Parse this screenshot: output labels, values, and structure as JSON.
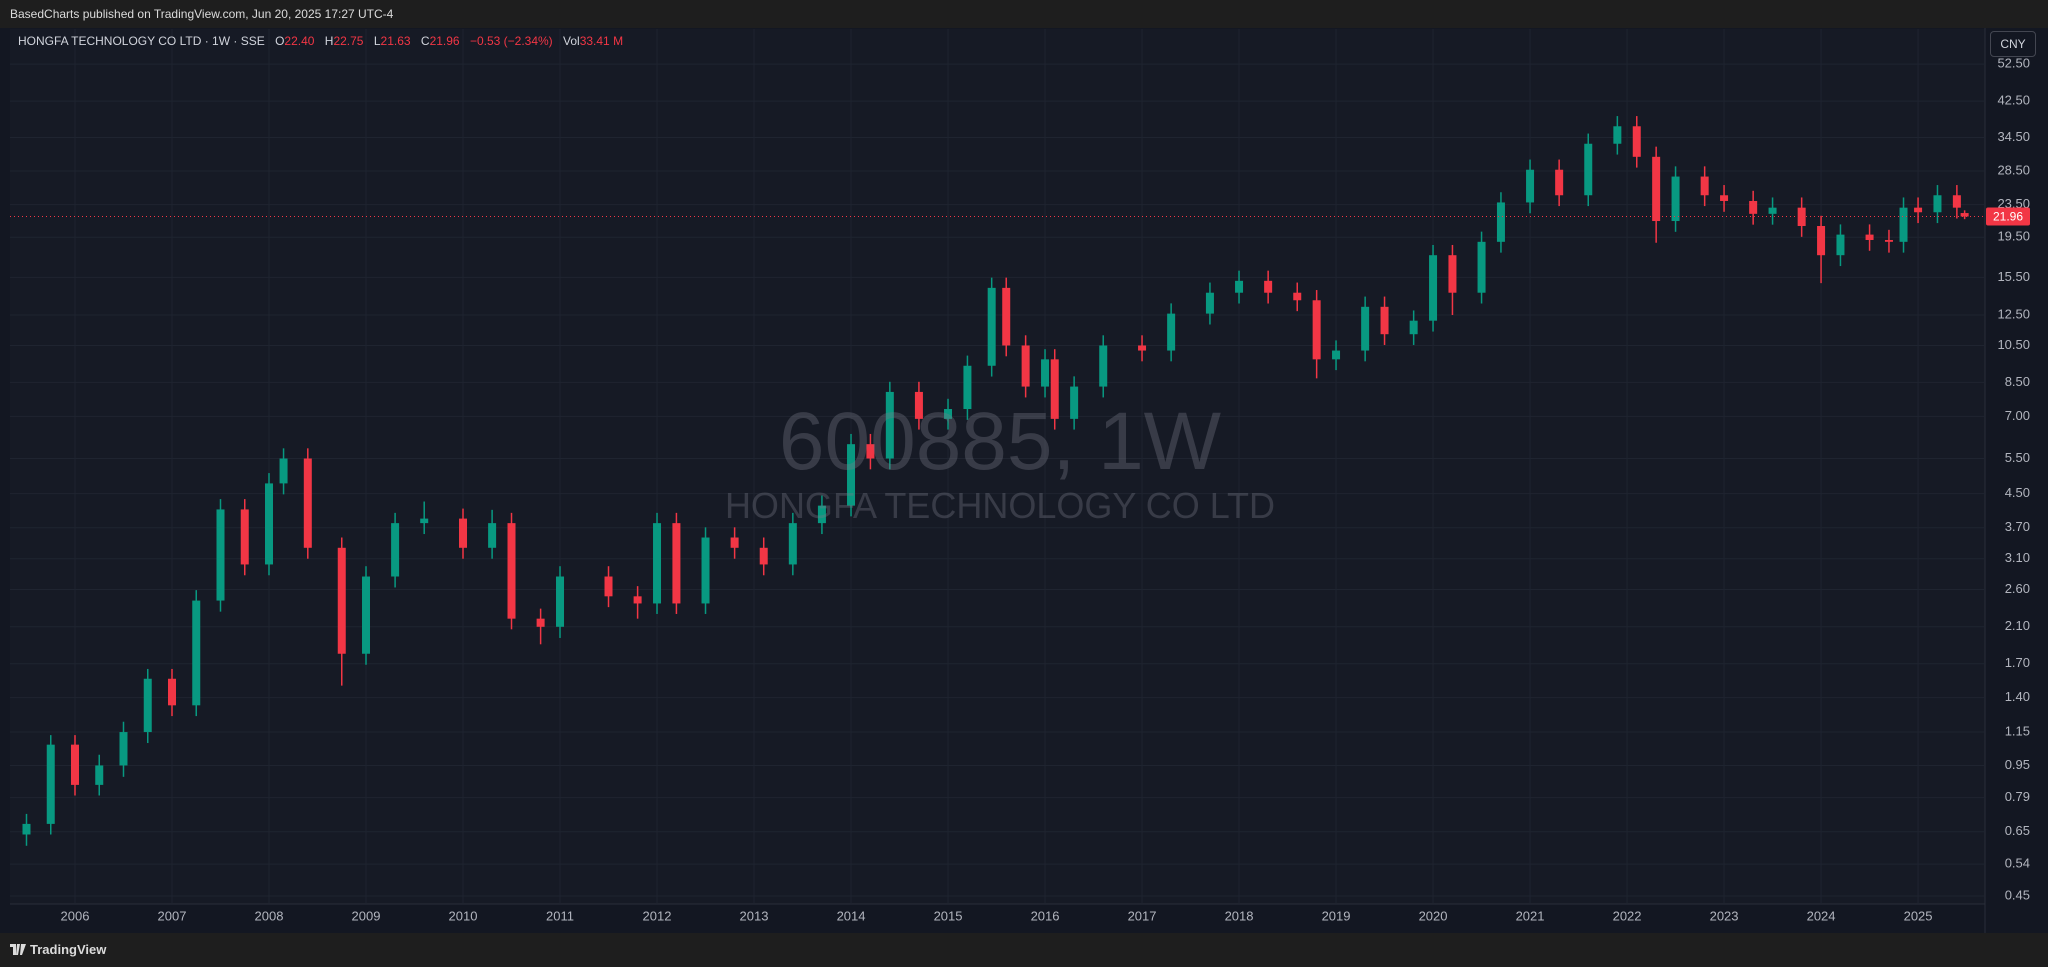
{
  "header": {
    "publisher": "BasedCharts published on TradingView.com, Jun 20, 2025 17:27 UTC-4"
  },
  "footer": {
    "brand": "TradingView"
  },
  "chart_data": {
    "type": "candlestick",
    "title": "HONGFA TECHNOLOGY CO LTD · 1W · SSE",
    "legend": [
      {
        "key": "O",
        "value": "22.40"
      },
      {
        "key": "H",
        "value": "22.75"
      },
      {
        "key": "L",
        "value": "21.63"
      },
      {
        "key": "C",
        "value": "21.96"
      },
      {
        "key": "Vol",
        "value": "33.41 M"
      }
    ],
    "legend_change": "−0.53 (−2.34%)",
    "watermark": [
      "600885, 1W",
      "HONGFA TECHNOLOGY CO LTD"
    ],
    "currency": "CNY",
    "last_price": 21.96,
    "up_color": "#089981",
    "down_color": "#f23645",
    "log_scale": true,
    "grid": true,
    "xlim": [
      2005.33,
      2025.69
    ],
    "xticks": [
      2006,
      2007,
      2008,
      2009,
      2010,
      2011,
      2012,
      2013,
      2014,
      2015,
      2016,
      2017,
      2018,
      2019,
      2020,
      2021,
      2022,
      2023,
      2024,
      2025
    ],
    "ylim": [
      0.43,
      64.2
    ],
    "yticks": [
      0.45,
      0.54,
      0.65,
      0.79,
      0.95,
      1.15,
      {
        "value": 1.4,
        "label": "1.40"
      },
      {
        "value": 1.7,
        "label": "1.70"
      },
      {
        "value": 2.1,
        "label": "2.10"
      },
      {
        "value": 2.6,
        "label": "2.60"
      },
      {
        "value": 3.1,
        "label": "3.10"
      },
      {
        "value": 3.7,
        "label": "3.70"
      },
      {
        "value": 4.5,
        "label": "4.50"
      },
      {
        "value": 5.5,
        "label": "5.50"
      },
      {
        "value": 7,
        "label": "7.00"
      },
      {
        "value": 8.5,
        "label": "8.50"
      },
      {
        "value": 10.5,
        "label": "10.50"
      },
      {
        "value": 12.5,
        "label": "12.50"
      },
      {
        "value": 15.5,
        "label": "15.50"
      },
      {
        "value": 19.5,
        "label": "19.50"
      },
      {
        "value": 23.5,
        "label": "23.50"
      },
      {
        "value": 28.5,
        "label": "28.50"
      },
      {
        "value": 34.5,
        "label": "34.50"
      },
      {
        "value": 42.5,
        "label": "42.50"
      },
      {
        "value": 52.5,
        "label": "52.50"
      }
    ],
    "x": [
      2005.5,
      2005.75,
      2006.0,
      2006.25,
      2006.5,
      2006.75,
      2007.0,
      2007.25,
      2007.5,
      2007.75,
      2008.0,
      2008.15,
      2008.4,
      2008.75,
      2009.0,
      2009.3,
      2009.6,
      2010.0,
      2010.3,
      2010.5,
      2010.8,
      2011.0,
      2011.5,
      2011.8,
      2012.0,
      2012.2,
      2012.5,
      2012.8,
      2013.1,
      2013.4,
      2013.7,
      2014.0,
      2014.2,
      2014.4,
      2014.7,
      2015.0,
      2015.2,
      2015.45,
      2015.6,
      2015.8,
      2016.0,
      2016.1,
      2016.3,
      2016.6,
      2017.0,
      2017.3,
      2017.7,
      2018.0,
      2018.3,
      2018.6,
      2018.8,
      2019.0,
      2019.3,
      2019.5,
      2019.8,
      2020.0,
      2020.2,
      2020.5,
      2020.7,
      2021.0,
      2021.3,
      2021.6,
      2021.9,
      2022.1,
      2022.3,
      2022.5,
      2022.8,
      2023.0,
      2023.3,
      2023.5,
      2023.8,
      2024.0,
      2024.2,
      2024.5,
      2024.7,
      2024.85,
      2025.0,
      2025.2,
      2025.4,
      2025.48
    ],
    "open": [
      0.64,
      0.68,
      1.07,
      0.85,
      0.95,
      1.15,
      1.56,
      1.34,
      2.44,
      4.11,
      3.0,
      4.77,
      5.5,
      3.3,
      1.8,
      2.8,
      3.8,
      3.9,
      3.3,
      3.8,
      2.2,
      2.1,
      2.8,
      2.5,
      2.4,
      3.8,
      2.4,
      3.5,
      3.3,
      3.0,
      3.8,
      4.2,
      5.97,
      5.5,
      8.05,
      6.9,
      7.3,
      9.35,
      14.6,
      10.5,
      8.3,
      9.7,
      6.9,
      8.3,
      10.5,
      10.2,
      12.6,
      14.2,
      15.2,
      14.2,
      13.6,
      9.7,
      10.2,
      13.1,
      11.2,
      12.1,
      17.6,
      14.2,
      19.0,
      23.8,
      28.7,
      24.8,
      33.3,
      36.8,
      30.9,
      21.4,
      27.6,
      24.8,
      24.0,
      22.3,
      23.1,
      20.8,
      17.6,
      19.8,
      19.2,
      19.0,
      23.1,
      22.5,
      24.8,
      22.4
    ],
    "high": [
      0.72,
      1.13,
      1.13,
      1.01,
      1.22,
      1.65,
      1.65,
      2.59,
      4.36,
      4.36,
      5.06,
      5.83,
      5.83,
      3.5,
      2.97,
      4.03,
      4.3,
      4.13,
      4.1,
      4.03,
      2.33,
      2.97,
      2.97,
      2.65,
      4.03,
      4.03,
      3.71,
      3.71,
      3.5,
      4.03,
      4.45,
      6.33,
      6.33,
      8.53,
      8.53,
      7.74,
      9.91,
      15.48,
      15.48,
      11.13,
      10.28,
      10.28,
      8.8,
      11.13,
      11.13,
      13.36,
      15.05,
      16.11,
      16.11,
      15.05,
      14.42,
      10.81,
      13.89,
      13.89,
      12.83,
      18.66,
      18.66,
      20.14,
      25.23,
      30.42,
      30.42,
      35.3,
      39.01,
      39.01,
      32.75,
      29.26,
      29.26,
      26.29,
      25.44,
      24.49,
      24.49,
      22.05,
      20.99,
      20.99,
      20.35,
      24.49,
      24.49,
      26.29,
      26.29,
      22.75
    ],
    "low": [
      0.6,
      0.64,
      0.8,
      0.8,
      0.89,
      1.08,
      1.26,
      1.26,
      2.29,
      2.82,
      2.82,
      4.48,
      3.1,
      1.5,
      1.69,
      2.63,
      3.57,
      3.1,
      3.1,
      2.07,
      1.9,
      1.97,
      2.35,
      2.2,
      2.26,
      2.26,
      2.26,
      3.1,
      2.82,
      2.82,
      3.57,
      3.95,
      5.17,
      5.17,
      6.49,
      6.49,
      6.86,
      8.79,
      9.87,
      7.8,
      7.8,
      6.49,
      6.49,
      7.8,
      9.59,
      9.59,
      11.84,
      13.35,
      13.35,
      12.78,
      8.7,
      9.12,
      9.59,
      10.53,
      10.53,
      11.37,
      12.5,
      13.35,
      17.86,
      22.37,
      23.31,
      23.31,
      31.3,
      29.05,
      18.9,
      20.12,
      23.31,
      22.56,
      20.96,
      20.96,
      19.55,
      15.0,
      16.54,
      18.05,
      17.86,
      17.86,
      21.15,
      21.15,
      21.71,
      21.63
    ],
    "close": [
      0.68,
      1.07,
      0.85,
      0.95,
      1.15,
      1.56,
      1.34,
      2.44,
      4.11,
      3.0,
      4.77,
      5.5,
      3.3,
      1.8,
      2.8,
      3.8,
      3.9,
      3.3,
      3.8,
      2.2,
      2.1,
      2.8,
      2.5,
      2.4,
      3.8,
      2.4,
      3.5,
      3.3,
      3.0,
      3.8,
      4.2,
      5.97,
      5.5,
      8.05,
      6.9,
      7.3,
      9.35,
      14.6,
      10.5,
      8.3,
      9.7,
      6.9,
      8.3,
      10.5,
      10.2,
      12.6,
      14.2,
      15.2,
      14.2,
      13.6,
      9.7,
      10.2,
      13.1,
      11.2,
      12.1,
      17.6,
      14.2,
      19.0,
      23.8,
      28.7,
      24.8,
      33.3,
      36.8,
      30.9,
      21.4,
      27.6,
      24.8,
      24.0,
      22.3,
      23.1,
      20.8,
      17.6,
      19.8,
      19.2,
      19.0,
      23.1,
      22.5,
      24.8,
      23.1,
      21.96
    ]
  }
}
